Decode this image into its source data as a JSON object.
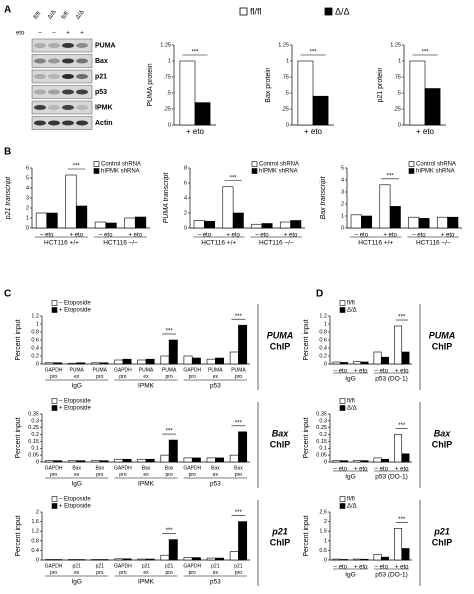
{
  "panel_labels": [
    "A",
    "B",
    "C",
    "D"
  ],
  "blot": {
    "lanes": [
      "fl/fl",
      "Δ/Δ",
      "fl/fl",
      "Δ/Δ"
    ],
    "eto_label": "eto",
    "eto_row": [
      "–",
      "–",
      "+",
      "+"
    ],
    "bands": [
      "PUMA",
      "Bax",
      "p21",
      "p53",
      "IPMK",
      "Actin"
    ]
  },
  "chart_data": [
    {
      "type": "bar",
      "ylabel": "PUMA protein",
      "categories": [
        "+ eto"
      ],
      "series": [
        {
          "name": "fl/fl",
          "color": "#ffffff",
          "values": [
            1.0
          ]
        },
        {
          "name": "Δ/Δ",
          "color": "#000000",
          "values": [
            0.35
          ]
        }
      ],
      "ylim": [
        0,
        1.25
      ],
      "yticks": [
        0,
        {
          "value": 0.25,
          "label": ".25"
        },
        {
          "value": 0.5,
          "label": ".5"
        },
        {
          "value": 0.75,
          "label": ".75"
        },
        1,
        1.25
      ],
      "significance": [
        "***"
      ]
    },
    {
      "type": "bar",
      "ylabel": "Bax protein",
      "categories": [
        "+ eto"
      ],
      "series": [
        {
          "color": "#ffffff",
          "values": [
            1.0
          ]
        },
        {
          "color": "#000000",
          "values": [
            0.45
          ]
        }
      ],
      "ylim": [
        0,
        1.25
      ],
      "yticks": [
        0,
        {
          "value": 0.25,
          "label": ".25"
        },
        {
          "value": 0.5,
          "label": ".5"
        },
        {
          "value": 0.75,
          "label": ".75"
        },
        1,
        1.25
      ],
      "significance": [
        "***"
      ]
    },
    {
      "type": "bar",
      "ylabel": "p21 protein",
      "categories": [
        "+ eto"
      ],
      "series": [
        {
          "color": "#ffffff",
          "values": [
            1.0
          ]
        },
        {
          "color": "#000000",
          "values": [
            0.57
          ]
        }
      ],
      "ylim": [
        0,
        1.25
      ],
      "yticks": [
        0,
        {
          "value": 0.25,
          "label": ".25"
        },
        {
          "value": 0.5,
          "label": ".5"
        },
        {
          "value": 0.75,
          "label": ".75"
        },
        1,
        1.25
      ],
      "significance": [
        "***"
      ]
    },
    {
      "type": "bar",
      "ylabel": "p21 transcript",
      "categories": [
        "– eto",
        "+ eto",
        "– eto",
        "+ eto"
      ],
      "groups": [
        "HCT116 +/+",
        "HCT116 –/–"
      ],
      "series": [
        {
          "name": "Control shRNA",
          "color": "#ffffff",
          "values": [
            1.5,
            5.3,
            0.6,
            1.0
          ]
        },
        {
          "name": "hIPMK shRNA",
          "color": "#000000",
          "values": [
            1.5,
            2.2,
            0.5,
            1.1
          ]
        }
      ],
      "ylim": [
        0,
        6
      ],
      "yticks": [
        0,
        1,
        2,
        3,
        4,
        5,
        6
      ],
      "significance": [
        null,
        "***",
        null,
        null
      ]
    },
    {
      "type": "bar",
      "ylabel": "PUMA transcript",
      "categories": [
        "– eto",
        "+ eto",
        "– eto",
        "+ eto"
      ],
      "groups": [
        "HCT116 +/+",
        "HCT116 –/–"
      ],
      "series": [
        {
          "name": "Control shRNA",
          "color": "#ffffff",
          "values": [
            1.0,
            5.5,
            0.5,
            0.8
          ]
        },
        {
          "name": "hIPMK shRNA",
          "color": "#000000",
          "values": [
            0.9,
            2.0,
            0.6,
            1.0
          ]
        }
      ],
      "ylim": [
        0,
        8
      ],
      "yticks": [
        0,
        2,
        4,
        6,
        8
      ],
      "significance": [
        null,
        "***",
        null,
        null
      ]
    },
    {
      "type": "bar",
      "ylabel": "Bax transcript",
      "categories": [
        "– eto",
        "+ eto",
        "– eto",
        "+ eto"
      ],
      "groups": [
        "HCT116 +/+",
        "HCT116 –/–"
      ],
      "series": [
        {
          "name": "Control shRNA",
          "color": "#ffffff",
          "values": [
            1.1,
            3.6,
            0.9,
            0.9
          ]
        },
        {
          "name": "hIPMK shRNA",
          "color": "#000000",
          "values": [
            1.0,
            1.8,
            0.8,
            0.9
          ]
        }
      ],
      "ylim": [
        0,
        5
      ],
      "yticks": [
        0,
        1,
        2,
        3,
        4,
        5
      ],
      "significance": [
        null,
        "***",
        null,
        null
      ]
    },
    {
      "type": "bar",
      "ylabel": "Percent input",
      "target": "PUMA",
      "assay": "ChIP",
      "categories": [
        [
          "GAPDH",
          "pro"
        ],
        [
          "PUMA",
          "ex"
        ],
        [
          "PUMA",
          "pro"
        ],
        [
          "GAPDH",
          "pro"
        ],
        [
          "PUMA",
          "ex"
        ],
        [
          "PUMA",
          "pro"
        ],
        [
          "GAPDH",
          "pro"
        ],
        [
          "PUMA",
          "ex"
        ],
        [
          "PUMA",
          "pro"
        ]
      ],
      "groups": [
        "IgG",
        "IPMK",
        "p53"
      ],
      "series": [
        {
          "name": "– Etoposide",
          "color": "#ffffff",
          "values": [
            0.03,
            0.02,
            0.03,
            0.1,
            0.1,
            0.2,
            0.2,
            0.12,
            0.3
          ]
        },
        {
          "name": "+ Etoposide",
          "color": "#000000",
          "values": [
            0.03,
            0.03,
            0.03,
            0.12,
            0.12,
            0.6,
            0.15,
            0.15,
            0.97
          ]
        }
      ],
      "ylim": [
        0,
        1.2
      ],
      "yticks": [
        0,
        0.2,
        0.4,
        0.6,
        0.8,
        1,
        1.2
      ],
      "significance": [
        null,
        null,
        null,
        null,
        null,
        "***",
        null,
        null,
        "***"
      ]
    },
    {
      "type": "bar",
      "ylabel": "Percent input",
      "target": "Bax",
      "assay": "ChIP",
      "categories": [
        [
          "GAPDH",
          "pro"
        ],
        [
          "Bax",
          "ex"
        ],
        [
          "Bax",
          "pro"
        ],
        [
          "GAPDH",
          "pro"
        ],
        [
          "Bax",
          "ex"
        ],
        [
          "Bax",
          "pro"
        ],
        [
          "GAPDH",
          "pro"
        ],
        [
          "Bax",
          "ex"
        ],
        [
          "Bax",
          "pro"
        ]
      ],
      "groups": [
        "IgG",
        "IPMK",
        "p53"
      ],
      "series": [
        {
          "name": "– Etoposide",
          "color": "#ffffff",
          "values": [
            0.01,
            0.01,
            0.01,
            0.02,
            0.02,
            0.05,
            0.03,
            0.03,
            0.05
          ]
        },
        {
          "name": "+ Etoposide",
          "color": "#000000",
          "values": [
            0.01,
            0.01,
            0.01,
            0.02,
            0.02,
            0.16,
            0.03,
            0.03,
            0.22
          ]
        }
      ],
      "ylim": [
        0,
        0.35
      ],
      "yticks": [
        0,
        0.05,
        0.1,
        0.15,
        0.2,
        0.25,
        0.3,
        0.35
      ],
      "significance": [
        null,
        null,
        null,
        null,
        null,
        "***",
        null,
        null,
        "***"
      ]
    },
    {
      "type": "bar",
      "ylabel": "Percent input",
      "target": "p21",
      "assay": "ChIP",
      "categories": [
        [
          "GAPDH",
          "pro"
        ],
        [
          "p21",
          "ex"
        ],
        [
          "p21",
          "pro"
        ],
        [
          "GAPDH",
          "pro"
        ],
        [
          "p21",
          "ex"
        ],
        [
          "p21",
          "pro"
        ],
        [
          "GAPDH",
          "pro"
        ],
        [
          "p21",
          "ex"
        ],
        [
          "p21",
          "pro"
        ]
      ],
      "groups": [
        "IgG",
        "IPMK",
        "p53"
      ],
      "series": [
        {
          "name": "– Etoposide",
          "color": "#ffffff",
          "values": [
            0.02,
            0.02,
            0.02,
            0.05,
            0.04,
            0.2,
            0.1,
            0.08,
            0.35
          ]
        },
        {
          "name": "+ Etoposide",
          "color": "#000000",
          "values": [
            0.02,
            0.02,
            0.02,
            0.05,
            0.04,
            0.85,
            0.1,
            0.08,
            1.6
          ]
        }
      ],
      "ylim": [
        0,
        2
      ],
      "yticks": [
        0,
        0.4,
        0.8,
        1.2,
        1.6,
        2
      ],
      "significance": [
        null,
        null,
        null,
        null,
        null,
        "***",
        null,
        null,
        "***"
      ]
    },
    {
      "type": "bar",
      "ylabel": "Percent input",
      "target": "PUMA",
      "assay": "ChIP",
      "categories": [
        "– eto",
        "+ eto",
        "– eto",
        "+ eto"
      ],
      "groups": [
        "IgG",
        "p53 (DO-1)"
      ],
      "series": [
        {
          "name": "fl/fl",
          "color": "#ffffff",
          "values": [
            0.05,
            0.06,
            0.3,
            0.95
          ]
        },
        {
          "name": "Δ/Δ",
          "color": "#000000",
          "values": [
            0.04,
            0.05,
            0.17,
            0.3
          ]
        }
      ],
      "ylim": [
        0,
        1.2
      ],
      "yticks": [
        0,
        0.2,
        0.4,
        0.6,
        0.8,
        1,
        1.2
      ],
      "significance": [
        null,
        null,
        null,
        "***"
      ]
    },
    {
      "type": "bar",
      "ylabel": "Percent input",
      "target": "Bax",
      "assay": "ChIP",
      "categories": [
        "– eto",
        "+ eto",
        "– eto",
        "+ eto"
      ],
      "groups": [
        "IgG",
        "p53 (DO-1)"
      ],
      "series": [
        {
          "name": "fl/fl",
          "color": "#ffffff",
          "values": [
            0.01,
            0.01,
            0.03,
            0.2
          ]
        },
        {
          "name": "Δ/Δ",
          "color": "#000000",
          "values": [
            0.01,
            0.01,
            0.02,
            0.06
          ]
        }
      ],
      "ylim": [
        0,
        0.35
      ],
      "yticks": [
        0,
        0.05,
        0.1,
        0.15,
        0.2,
        0.25,
        0.3,
        0.35
      ],
      "significance": [
        null,
        null,
        null,
        "***"
      ]
    },
    {
      "type": "bar",
      "ylabel": "Percent input",
      "target": "p21",
      "assay": "ChIP",
      "categories": [
        "– eto",
        "+ eto",
        "– eto",
        "+ eto"
      ],
      "groups": [
        "IgG",
        "p53 (DO-1)"
      ],
      "series": [
        {
          "name": "fl/fl",
          "color": "#ffffff",
          "values": [
            0.05,
            0.05,
            0.3,
            1.65
          ]
        },
        {
          "name": "Δ/Δ",
          "color": "#000000",
          "values": [
            0.03,
            0.04,
            0.15,
            0.6
          ]
        }
      ],
      "ylim": [
        0,
        2.5
      ],
      "yticks": [
        0,
        0.5,
        1,
        1.5,
        2,
        2.5
      ],
      "significance": [
        null,
        null,
        null,
        "***"
      ]
    }
  ]
}
